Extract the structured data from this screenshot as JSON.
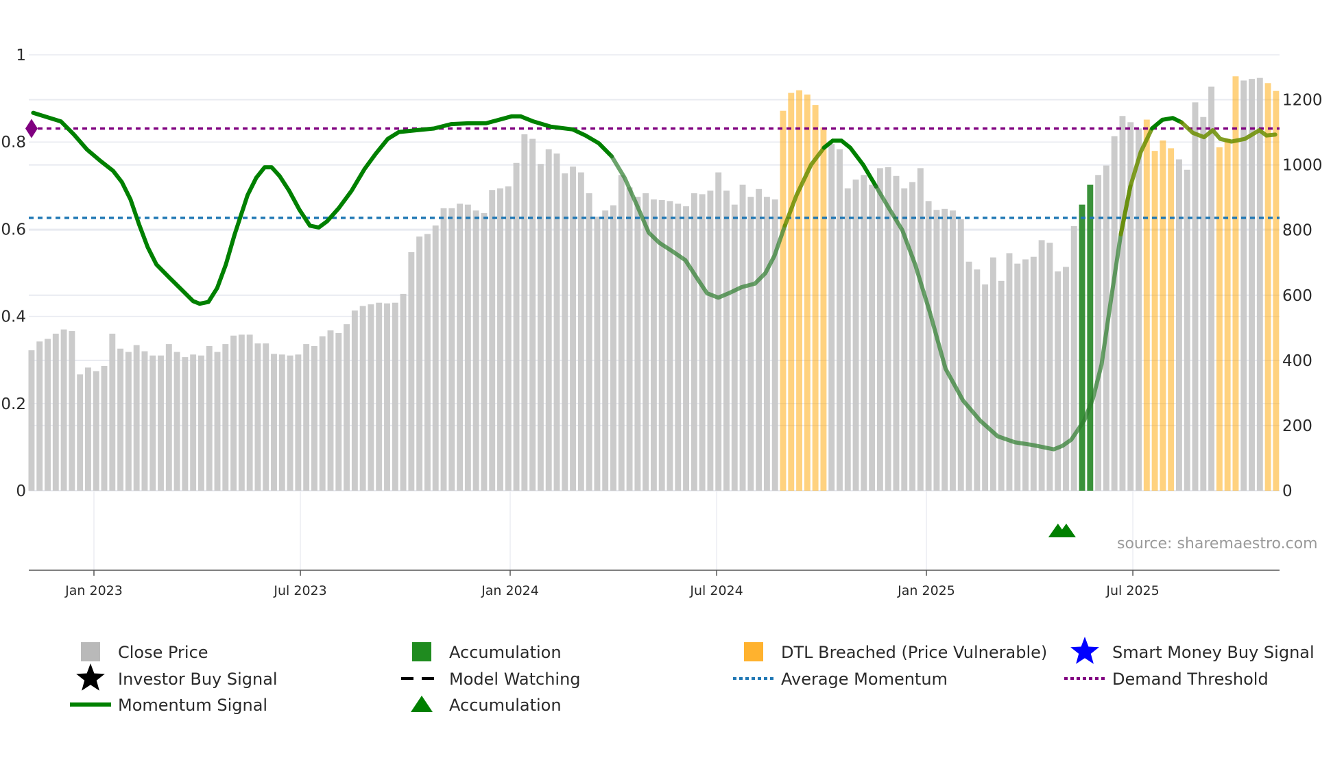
{
  "chart_data": {
    "type": "bar+line",
    "title": "",
    "source": "source: sharemaestro.com",
    "left_axis": {
      "ticks": [
        "0",
        "0.2",
        "0.4",
        "0.6",
        "0.8",
        "1"
      ],
      "values": [
        0,
        0.2,
        0.4,
        0.6,
        0.8,
        1
      ],
      "range": [
        0,
        1
      ]
    },
    "right_axis": {
      "ticks": [
        "0",
        "200",
        "400",
        "600",
        "800",
        "1000",
        "1200"
      ],
      "values": [
        0,
        200,
        400,
        600,
        800,
        1000,
        1200
      ],
      "range": [
        0,
        1338
      ]
    },
    "x_axis": {
      "ticks": [
        {
          "label": "Jan 2023",
          "x": 2023.0
        },
        {
          "label": "Jul 2023",
          "x": 2023.496
        },
        {
          "label": "Jan 2024",
          "x": 2024.0
        },
        {
          "label": "Jul 2024",
          "x": 2024.496
        },
        {
          "label": "Jan 2025",
          "x": 2025.0
        },
        {
          "label": "Jul 2025",
          "x": 2025.496
        }
      ],
      "range": [
        2022.79,
        2025.86
      ]
    },
    "bars": {
      "name": "Close Price",
      "x_start": 2022.85,
      "x_end": 2025.84,
      "interval": "weekly",
      "values": [
        431,
        458,
        466,
        482,
        495,
        490,
        357,
        378,
        367,
        383,
        482,
        436,
        426,
        447,
        428,
        415,
        415,
        450,
        426,
        410,
        418,
        415,
        444,
        426,
        450,
        476,
        479,
        479,
        452,
        452,
        420,
        418,
        415,
        418,
        450,
        444,
        474,
        492,
        484,
        511,
        553,
        567,
        572,
        577,
        575,
        577,
        604,
        732,
        780,
        788,
        814,
        867,
        867,
        881,
        878,
        860,
        852,
        923,
        928,
        934,
        1006,
        1094,
        1080,
        1003,
        1048,
        1035,
        974,
        995,
        977,
        913,
        841,
        860,
        876,
        969,
        931,
        902,
        913,
        894,
        892,
        889,
        881,
        873,
        913,
        910,
        921,
        977,
        921,
        878,
        939,
        902,
        926,
        902,
        894,
        1166,
        1221,
        1229,
        1216,
        1184,
        1115,
        1064,
        1048,
        928,
        955,
        969,
        939,
        990,
        993,
        966,
        928,
        947,
        990,
        889,
        862,
        865,
        860,
        833,
        703,
        679,
        633,
        716,
        644,
        729,
        697,
        710,
        718,
        769,
        761,
        673,
        687,
        812,
        878,
        939,
        969,
        998,
        1088,
        1150,
        1131,
        1112,
        1139,
        1043,
        1075,
        1051,
        1017,
        985,
        1192,
        1147,
        1240,
        1054,
        1080,
        1272,
        1259,
        1264,
        1267,
        1251,
        1227
      ],
      "state": "gggggggggggggggggggggggggggggggggggggggggggggggggggggggggggggggggggggggggggggggggggggggggggggoooooogggggggggggggggggggggggggggggggaaggggggoooogggggooogggooooooo"
    },
    "momentum": {
      "name": "Momentum Signal",
      "points": [
        [
          2022.854,
          0.867
        ],
        [
          2022.921,
          0.847
        ],
        [
          2022.952,
          0.817
        ],
        [
          2022.983,
          0.783
        ],
        [
          2023.015,
          0.757
        ],
        [
          2023.046,
          0.734
        ],
        [
          2023.067,
          0.708
        ],
        [
          2023.088,
          0.668
        ],
        [
          2023.108,
          0.612
        ],
        [
          2023.129,
          0.559
        ],
        [
          2023.15,
          0.519
        ],
        [
          2023.181,
          0.489
        ],
        [
          2023.213,
          0.459
        ],
        [
          2023.238,
          0.435
        ],
        [
          2023.254,
          0.429
        ],
        [
          2023.275,
          0.433
        ],
        [
          2023.296,
          0.465
        ],
        [
          2023.317,
          0.519
        ],
        [
          2023.338,
          0.588
        ],
        [
          2023.369,
          0.678
        ],
        [
          2023.39,
          0.718
        ],
        [
          2023.41,
          0.742
        ],
        [
          2023.427,
          0.742
        ],
        [
          2023.446,
          0.722
        ],
        [
          2023.469,
          0.688
        ],
        [
          2023.494,
          0.644
        ],
        [
          2023.519,
          0.608
        ],
        [
          2023.54,
          0.604
        ],
        [
          2023.56,
          0.618
        ],
        [
          2023.588,
          0.648
        ],
        [
          2023.619,
          0.688
        ],
        [
          2023.65,
          0.738
        ],
        [
          2023.677,
          0.773
        ],
        [
          2023.706,
          0.807
        ],
        [
          2023.733,
          0.823
        ],
        [
          2023.775,
          0.827
        ],
        [
          2023.817,
          0.831
        ],
        [
          2023.858,
          0.841
        ],
        [
          2023.9,
          0.843
        ],
        [
          2023.942,
          0.843
        ],
        [
          2023.973,
          0.851
        ],
        [
          2024.004,
          0.859
        ],
        [
          2024.025,
          0.859
        ],
        [
          2024.056,
          0.847
        ],
        [
          2024.098,
          0.835
        ],
        [
          2024.15,
          0.829
        ],
        [
          2024.181,
          0.815
        ],
        [
          2024.213,
          0.797
        ],
        [
          2024.244,
          0.767
        ],
        [
          2024.275,
          0.718
        ],
        [
          2024.306,
          0.652
        ],
        [
          2024.333,
          0.592
        ],
        [
          2024.358,
          0.569
        ],
        [
          2024.39,
          0.549
        ],
        [
          2024.421,
          0.529
        ],
        [
          2024.448,
          0.489
        ],
        [
          2024.473,
          0.453
        ],
        [
          2024.5,
          0.443
        ],
        [
          2024.525,
          0.453
        ],
        [
          2024.556,
          0.467
        ],
        [
          2024.588,
          0.475
        ],
        [
          2024.613,
          0.499
        ],
        [
          2024.635,
          0.539
        ],
        [
          2024.66,
          0.608
        ],
        [
          2024.688,
          0.678
        ],
        [
          2024.723,
          0.748
        ],
        [
          2024.754,
          0.787
        ],
        [
          2024.775,
          0.803
        ],
        [
          2024.796,
          0.803
        ],
        [
          2024.817,
          0.787
        ],
        [
          2024.848,
          0.748
        ],
        [
          2024.879,
          0.698
        ],
        [
          2024.91,
          0.648
        ],
        [
          2024.942,
          0.598
        ],
        [
          2024.973,
          0.519
        ],
        [
          2025.008,
          0.41
        ],
        [
          2025.046,
          0.28
        ],
        [
          2025.088,
          0.207
        ],
        [
          2025.129,
          0.161
        ],
        [
          2025.171,
          0.125
        ],
        [
          2025.213,
          0.111
        ],
        [
          2025.254,
          0.105
        ],
        [
          2025.306,
          0.095
        ],
        [
          2025.327,
          0.103
        ],
        [
          2025.348,
          0.117
        ],
        [
          2025.379,
          0.161
        ],
        [
          2025.4,
          0.211
        ],
        [
          2025.421,
          0.29
        ],
        [
          2025.442,
          0.429
        ],
        [
          2025.467,
          0.588
        ],
        [
          2025.49,
          0.698
        ],
        [
          2025.515,
          0.777
        ],
        [
          2025.542,
          0.831
        ],
        [
          2025.567,
          0.851
        ],
        [
          2025.592,
          0.855
        ],
        [
          2025.613,
          0.845
        ],
        [
          2025.64,
          0.821
        ],
        [
          2025.667,
          0.811
        ],
        [
          2025.688,
          0.827
        ],
        [
          2025.706,
          0.807
        ],
        [
          2025.733,
          0.801
        ],
        [
          2025.765,
          0.807
        ],
        [
          2025.8,
          0.827
        ],
        [
          2025.817,
          0.815
        ],
        [
          2025.838,
          0.817
        ]
      ],
      "segments": [
        {
          "from": 2022.85,
          "to": 2024.25,
          "color": "#008000",
          "opacity": 1
        },
        {
          "from": 2024.25,
          "to": 2024.66,
          "color": "#2e7d2e",
          "opacity": 0.7
        },
        {
          "from": 2024.66,
          "to": 2024.77,
          "color": "#6b8e00",
          "opacity": 0.85
        },
        {
          "from": 2024.77,
          "to": 2024.87,
          "color": "#008000",
          "opacity": 1
        },
        {
          "from": 2024.87,
          "to": 2025.47,
          "color": "#2e7d2e",
          "opacity": 0.7
        },
        {
          "from": 2025.47,
          "to": 2025.56,
          "color": "#6b8e00",
          "opacity": 0.85
        },
        {
          "from": 2025.56,
          "to": 2025.62,
          "color": "#008000",
          "opacity": 1
        },
        {
          "from": 2025.62,
          "to": 2025.84,
          "color": "#6b8e00",
          "opacity": 0.85
        }
      ]
    },
    "average_momentum": 0.626,
    "demand_threshold": 0.831,
    "demand_marker_x": 2022.85,
    "accumulation_markers": [
      2025.316,
      2025.336
    ],
    "colors": {
      "close": "#c8c8c8",
      "accumulation": "#2e8b2e",
      "dtl": "#ffa500",
      "smart_money": "#0000ff",
      "investor": "#000000",
      "average": "#1f77b4",
      "demand": "#800080",
      "momentum": "#008000",
      "grid": "#e8eaf0"
    },
    "legend": [
      {
        "label": "Close Price",
        "icon": "gray-square"
      },
      {
        "label": "Accumulation",
        "icon": "green-square"
      },
      {
        "label": "DTL Breached (Price Vulnerable)",
        "icon": "orange-square"
      },
      {
        "label": "Smart Money Buy Signal",
        "icon": "blue-star"
      },
      {
        "label": "Investor Buy Signal",
        "icon": "black-star"
      },
      {
        "label": "Model Watching",
        "icon": "black-dash"
      },
      {
        "label": "Average Momentum",
        "icon": "blue-dot-line"
      },
      {
        "label": "Demand Threshold",
        "icon": "purple-dot-line"
      },
      {
        "label": "Momentum Signal",
        "icon": "green-line"
      },
      {
        "label": "Accumulation",
        "icon": "green-triangle"
      }
    ]
  }
}
